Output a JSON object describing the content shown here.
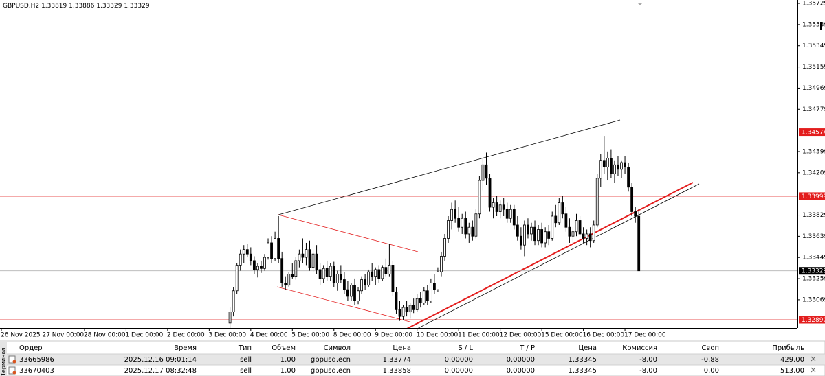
{
  "chart_data": {
    "type": "candlestick",
    "symbol": "GBPUSD,H2",
    "x": [
      66,
      67,
      68,
      69,
      70,
      71,
      72,
      73,
      74,
      75,
      76,
      77,
      78,
      79,
      80,
      81,
      82,
      83,
      84,
      85,
      86,
      87,
      88,
      89,
      90,
      91,
      92,
      93,
      94,
      95,
      96,
      97,
      98,
      99,
      100,
      101,
      102,
      103,
      104,
      105,
      106,
      107,
      108,
      109,
      110,
      111,
      112,
      113,
      114,
      115,
      116,
      117,
      118,
      119,
      120,
      121,
      122,
      123,
      124,
      125,
      126,
      127,
      128,
      129,
      130,
      131,
      132,
      133,
      134,
      135,
      136,
      137,
      138,
      139,
      140,
      141,
      142,
      143,
      144,
      145,
      146,
      147,
      148,
      149,
      150,
      151,
      152,
      153,
      154,
      155,
      156,
      157,
      158,
      159,
      160,
      161,
      162,
      163,
      164,
      165,
      166,
      167,
      168,
      169,
      170,
      171,
      172,
      173,
      174,
      175,
      176,
      177,
      178,
      179,
      180,
      181,
      182,
      183,
      184
    ],
    "open": [
      1.3286,
      1.3296,
      1.3315,
      1.3338,
      1.3348,
      1.3352,
      1.3348,
      1.3342,
      1.3334,
      1.3337,
      1.3335,
      1.3345,
      1.3358,
      1.3344,
      1.3362,
      1.3344,
      1.3322,
      1.332,
      1.333,
      1.3328,
      1.3342,
      1.3348,
      1.3345,
      1.3352,
      1.3336,
      1.3348,
      1.3334,
      1.3326,
      1.3335,
      1.3328,
      1.3337,
      1.3322,
      1.333,
      1.3325,
      1.3316,
      1.331,
      1.332,
      1.3306,
      1.3315,
      1.3325,
      1.332,
      1.3332,
      1.3328,
      1.3334,
      1.3326,
      1.3336,
      1.333,
      1.3338,
      1.3314,
      1.3298,
      1.3292,
      1.33,
      1.3296,
      1.3302,
      1.3298,
      1.3308,
      1.3304,
      1.3315,
      1.3306,
      1.3322,
      1.3316,
      1.3332,
      1.3346,
      1.3362,
      1.3378,
      1.3388,
      1.338,
      1.3372,
      1.338,
      1.3366,
      1.3372,
      1.3364,
      1.3384,
      1.3414,
      1.3428,
      1.3416,
      1.339,
      1.3394,
      1.3386,
      1.3392,
      1.3388,
      1.338,
      1.3388,
      1.3374,
      1.3364,
      1.3356,
      1.3374,
      1.3366,
      1.3372,
      1.336,
      1.337,
      1.3358,
      1.3368,
      1.3362,
      1.3382,
      1.3376,
      1.3394,
      1.3384,
      1.3372,
      1.3364,
      1.3368,
      1.3378,
      1.3366,
      1.3362,
      1.3366,
      1.336,
      1.3374,
      1.3416,
      1.3432,
      1.3426,
      1.3434,
      1.342,
      1.3428,
      1.3424,
      1.343,
      1.3426,
      1.3408,
      1.3386,
      1.33819
    ],
    "high": [
      1.33,
      1.3318,
      1.334,
      1.3352,
      1.3356,
      1.3357,
      1.3354,
      1.3346,
      1.334,
      1.3342,
      1.3348,
      1.3362,
      1.3364,
      1.3368,
      1.3382,
      1.335,
      1.3328,
      1.3332,
      1.334,
      1.3345,
      1.3352,
      1.3362,
      1.3358,
      1.336,
      1.3352,
      1.3356,
      1.334,
      1.3338,
      1.3342,
      1.334,
      1.3341,
      1.3333,
      1.3338,
      1.3332,
      1.3324,
      1.3322,
      1.3326,
      1.3318,
      1.3328,
      1.333,
      1.3334,
      1.334,
      1.3336,
      1.3338,
      1.3338,
      1.3344,
      1.3357,
      1.3342,
      1.3318,
      1.3306,
      1.3302,
      1.3306,
      1.3304,
      1.3308,
      1.3312,
      1.3314,
      1.3318,
      1.332,
      1.3326,
      1.333,
      1.3336,
      1.335,
      1.3366,
      1.3382,
      1.3394,
      1.3396,
      1.339,
      1.3384,
      1.3386,
      1.3376,
      1.3378,
      1.3388,
      1.3418,
      1.3434,
      1.3439,
      1.342,
      1.3398,
      1.34,
      1.3396,
      1.3398,
      1.3394,
      1.3392,
      1.3392,
      1.3382,
      1.3372,
      1.3378,
      1.338,
      1.3376,
      1.3378,
      1.3374,
      1.3376,
      1.3372,
      1.3374,
      1.3386,
      1.3392,
      1.3398,
      1.34,
      1.339,
      1.338,
      1.3372,
      1.3384,
      1.3382,
      1.3372,
      1.337,
      1.3372,
      1.3378,
      1.342,
      1.3438,
      1.3454,
      1.344,
      1.3442,
      1.3432,
      1.3436,
      1.3432,
      1.3436,
      1.343,
      1.3412,
      1.339,
      1.33886
    ],
    "low": [
      1.3281,
      1.3292,
      1.3312,
      1.3333,
      1.334,
      1.3345,
      1.3338,
      1.333,
      1.3327,
      1.3331,
      1.3333,
      1.3343,
      1.334,
      1.3342,
      1.334,
      1.3318,
      1.3316,
      1.3318,
      1.3326,
      1.3325,
      1.3336,
      1.334,
      1.3338,
      1.3333,
      1.3332,
      1.333,
      1.332,
      1.3322,
      1.3324,
      1.3324,
      1.3318,
      1.3315,
      1.3322,
      1.3312,
      1.3306,
      1.3306,
      1.3302,
      1.3303,
      1.3312,
      1.3316,
      1.3318,
      1.3324,
      1.332,
      1.3322,
      1.3324,
      1.3328,
      1.3328,
      1.331,
      1.3294,
      1.3288,
      1.3289,
      1.3292,
      1.329,
      1.3295,
      1.3296,
      1.33,
      1.3302,
      1.3302,
      1.3304,
      1.3312,
      1.3314,
      1.3328,
      1.3342,
      1.3358,
      1.337,
      1.3376,
      1.3368,
      1.3366,
      1.3362,
      1.3358,
      1.336,
      1.3362,
      1.338,
      1.3405,
      1.341,
      1.3386,
      1.338,
      1.3382,
      1.338,
      1.3382,
      1.3376,
      1.3376,
      1.337,
      1.336,
      1.3352,
      1.3346,
      1.3362,
      1.336,
      1.3356,
      1.3356,
      1.3354,
      1.3354,
      1.3356,
      1.336,
      1.3372,
      1.3374,
      1.338,
      1.3368,
      1.3358,
      1.3356,
      1.3364,
      1.3362,
      1.3358,
      1.3356,
      1.3354,
      1.3358,
      1.3372,
      1.3408,
      1.342,
      1.3414,
      1.3416,
      1.3412,
      1.3418,
      1.3416,
      1.342,
      1.3404,
      1.3382,
      1.3376,
      1.33329
    ],
    "close": [
      1.3296,
      1.3315,
      1.3338,
      1.3348,
      1.3352,
      1.3348,
      1.3342,
      1.3334,
      1.3337,
      1.3335,
      1.3345,
      1.3358,
      1.3344,
      1.3362,
      1.3344,
      1.3322,
      1.332,
      1.333,
      1.3328,
      1.3342,
      1.3348,
      1.3345,
      1.3352,
      1.3336,
      1.3348,
      1.3334,
      1.3326,
      1.3335,
      1.3328,
      1.3337,
      1.3322,
      1.333,
      1.3325,
      1.3316,
      1.331,
      1.332,
      1.3306,
      1.3315,
      1.3325,
      1.332,
      1.3332,
      1.3328,
      1.3334,
      1.3326,
      1.3336,
      1.333,
      1.3338,
      1.3314,
      1.3298,
      1.3292,
      1.33,
      1.3296,
      1.3302,
      1.3298,
      1.3308,
      1.3304,
      1.3315,
      1.3306,
      1.3322,
      1.3316,
      1.3332,
      1.3346,
      1.3362,
      1.3378,
      1.3388,
      1.338,
      1.3372,
      1.338,
      1.3366,
      1.3372,
      1.3364,
      1.3384,
      1.3414,
      1.3428,
      1.3416,
      1.339,
      1.3394,
      1.3386,
      1.3392,
      1.3388,
      1.338,
      1.3388,
      1.3374,
      1.3364,
      1.3356,
      1.3374,
      1.3366,
      1.3372,
      1.336,
      1.337,
      1.3358,
      1.3368,
      1.3362,
      1.3382,
      1.3376,
      1.3394,
      1.3384,
      1.3372,
      1.3364,
      1.3368,
      1.3378,
      1.3366,
      1.3362,
      1.3366,
      1.336,
      1.3374,
      1.3416,
      1.3432,
      1.3426,
      1.3434,
      1.342,
      1.3428,
      1.3424,
      1.343,
      1.3426,
      1.3408,
      1.3386,
      1.33819,
      1.33329
    ],
    "xlim": [
      -0.4,
      229.8
    ],
    "ylim": [
      1.32816,
      1.3576
    ],
    "xticks": [
      {
        "value": 0,
        "label": "26 Nov 2025"
      },
      {
        "value": 12,
        "label": "27 Nov 00:00"
      },
      {
        "value": 24,
        "label": "28 Nov 00:00"
      },
      {
        "value": 36,
        "label": "1 Dec 00:00"
      },
      {
        "value": 48,
        "label": "2 Dec 00:00"
      },
      {
        "value": 60,
        "label": "3 Dec 00:00"
      },
      {
        "value": 72,
        "label": "4 Dec 00:00"
      },
      {
        "value": 84,
        "label": "5 Dec 00:00"
      },
      {
        "value": 96,
        "label": "8 Dec 00:00"
      },
      {
        "value": 108,
        "label": "9 Dec 00:00"
      },
      {
        "value": 120,
        "label": "10 Dec 00:00"
      },
      {
        "value": 132,
        "label": "11 Dec 00:00"
      },
      {
        "value": 144,
        "label": "12 Dec 00:00"
      },
      {
        "value": 156,
        "label": "15 Dec 00:00"
      },
      {
        "value": 168,
        "label": "16 Dec 00:00"
      },
      {
        "value": 180,
        "label": "17 Dec 00:00"
      }
    ],
    "yticks": [
      1.35729,
      1.35539,
      1.35349,
      1.35159,
      1.34969,
      1.34779,
      1.34399,
      1.34209,
      1.33829,
      1.33639,
      1.33449,
      1.33259,
      1.33069
    ],
    "levels": [
      {
        "value": 1.34574,
        "color": "#e31d1d"
      },
      {
        "value": 1.33999,
        "color": "#e31d1d"
      },
      {
        "value": 1.33329,
        "color": "#b4b4b4",
        "tag_color": "#000000"
      },
      {
        "value": 1.3289,
        "label": "1.32890",
        "color": "#e31d1d"
      }
    ],
    "up_color": "#ffffff",
    "down_color": "#000000"
  },
  "terminal_tab": "Терминал",
  "table": {
    "columns": [
      "Ордер",
      "Время",
      "Тип",
      "Объем",
      "Символ",
      "Цена",
      "S / L",
      "T / P",
      "Цена",
      "Комиссия",
      "Своп",
      "Прибыль"
    ],
    "rows": [
      [
        "33665986",
        "2025.12.16 09:01:14",
        "sell",
        "1.00",
        "gbpusd.ecn",
        "1.33774",
        "0.00000",
        "0.00000",
        "1.33345",
        "-8.00",
        "-0.88",
        "429.00"
      ],
      [
        "33670403",
        "2025.12.17 08:32:48",
        "sell",
        "1.00",
        "gbpusd.ecn",
        "1.33858",
        "0.00000",
        "0.00000",
        "1.33345",
        "-8.00",
        "0.00",
        "513.00"
      ]
    ]
  }
}
